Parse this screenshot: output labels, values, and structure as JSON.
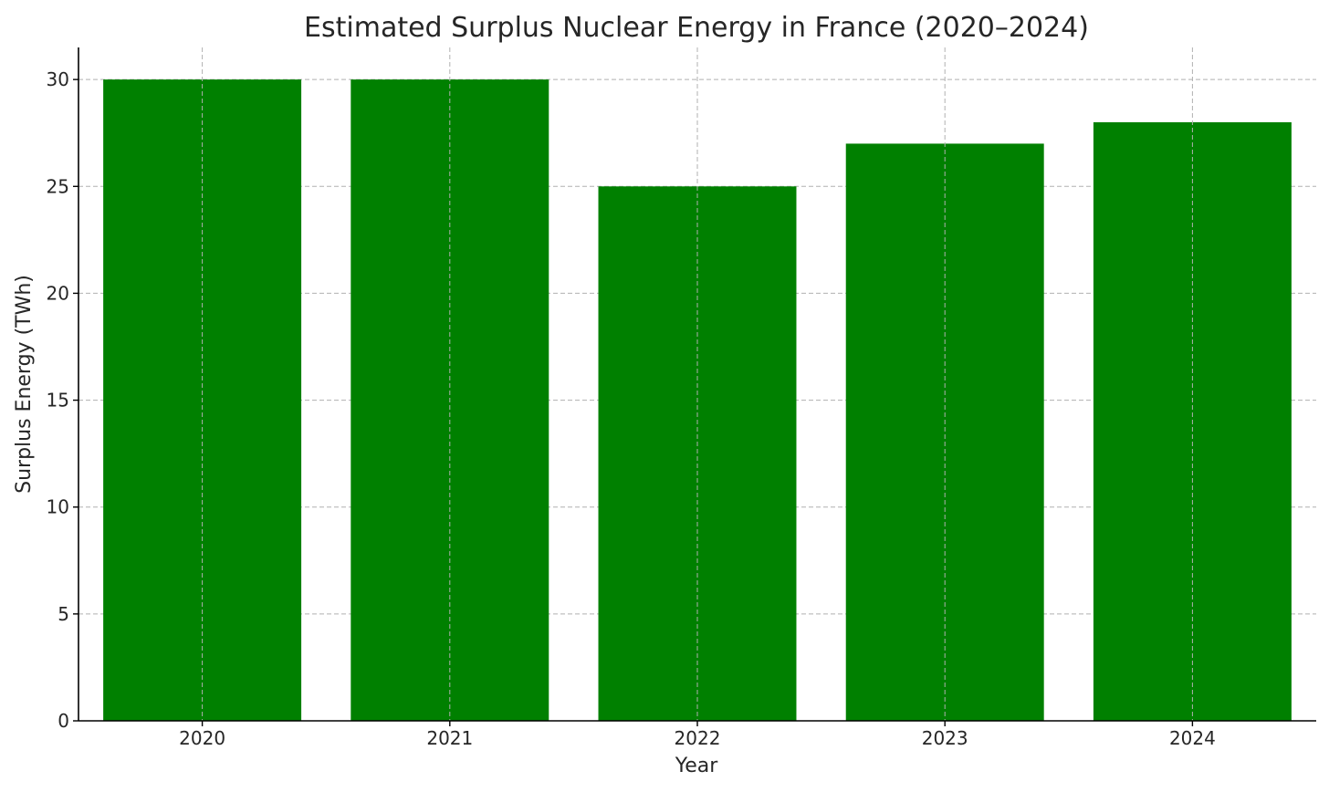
{
  "chart_data": {
    "type": "bar",
    "title": "Estimated Surplus Nuclear Energy in France (2020–2024)",
    "xlabel": "Year",
    "ylabel": "Surplus Energy (TWh)",
    "categories": [
      "2020",
      "2021",
      "2022",
      "2023",
      "2024"
    ],
    "values": [
      30,
      30,
      25,
      27,
      28
    ],
    "ylim": [
      0,
      31.5
    ],
    "yticks": [
      0,
      5,
      10,
      15,
      20,
      25,
      30
    ],
    "grid": true,
    "bar_color": "#008000"
  }
}
